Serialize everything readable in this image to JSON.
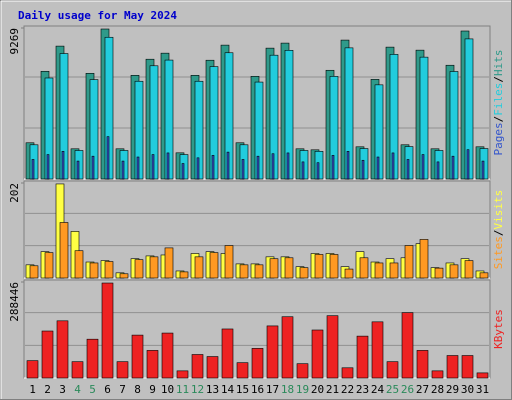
{
  "title": "Daily usage for May 2024",
  "legend_separator": "/",
  "chart_data": [
    {
      "type": "bar",
      "ylim": [
        0,
        9269
      ],
      "yticks": [
        9269
      ],
      "series": [
        {
          "name": "Hits",
          "color": "#2f9a8a",
          "values": [
            2224,
            6612,
            8157,
            1854,
            6488,
            9207,
            1854,
            6365,
            7353,
            7724,
            1607,
            6365,
            7291,
            8218,
            2224,
            6303,
            8033,
            8342,
            1854,
            1792,
            6674,
            8527,
            1977,
            6117,
            8095,
            2101,
            7909,
            1854,
            6983,
            9084,
            1977
          ]
        },
        {
          "name": "Files",
          "color": "#22ccdd",
          "values": [
            2100,
            6200,
            7700,
            1750,
            6100,
            8700,
            1750,
            6000,
            6950,
            7300,
            1500,
            6000,
            6900,
            7750,
            2100,
            5950,
            7600,
            7900,
            1750,
            1700,
            6300,
            8050,
            1870,
            5780,
            7650,
            1990,
            7480,
            1750,
            6600,
            8600,
            1870
          ]
        },
        {
          "name": "Pages",
          "color": "#3355cc",
          "values": [
            1200,
            1500,
            1700,
            1100,
            1400,
            2600,
            1100,
            1350,
            1500,
            1600,
            950,
            1300,
            1450,
            1650,
            1200,
            1400,
            1550,
            1600,
            1050,
            1000,
            1450,
            1700,
            1150,
            1350,
            1600,
            1200,
            1500,
            1050,
            1400,
            1800,
            1100
          ]
        }
      ]
    },
    {
      "type": "bar",
      "ylim": [
        0,
        202
      ],
      "yticks": [
        202
      ],
      "series": [
        {
          "name": "Visits",
          "color": "#ffff44",
          "values": [
            28,
            56,
            200,
            99,
            34,
            37,
            11,
            41,
            47,
            49,
            15,
            52,
            56,
            52,
            30,
            30,
            45,
            45,
            24,
            52,
            52,
            24,
            56,
            34,
            41,
            43,
            73,
            22,
            32,
            41,
            15
          ]
        },
        {
          "name": "Sites",
          "color": "#ff9922",
          "values": [
            26,
            54,
            118,
            58,
            32,
            35,
            9,
            39,
            45,
            64,
            13,
            45,
            54,
            69,
            28,
            28,
            41,
            43,
            22,
            50,
            50,
            19,
            43,
            32,
            32,
            69,
            82,
            21,
            28,
            37,
            11
          ]
        }
      ]
    },
    {
      "type": "bar",
      "ylim": [
        0,
        288446
      ],
      "yticks": [
        288446
      ],
      "categories": [
        "1",
        "2",
        "3",
        "4",
        "5",
        "6",
        "7",
        "8",
        "9",
        "10",
        "11",
        "12",
        "13",
        "14",
        "15",
        "16",
        "17",
        "18",
        "19",
        "20",
        "21",
        "22",
        "23",
        "24",
        "25",
        "26",
        "27",
        "28",
        "29",
        "30",
        "31"
      ],
      "series": [
        {
          "name": "KBytes",
          "color": "#ee2222",
          "values": [
            52166,
            141156,
            171841,
            49097,
            116606,
            285378,
            49097,
            128880,
            82851,
            135017,
            21480,
            70577,
            64441,
            147293,
            46029,
            88988,
            156499,
            184116,
            42960,
            144224,
            187185,
            30686,
            125813,
            168775,
            49097,
            196390,
            82851,
            21480,
            67509,
            67509,
            15343
          ]
        }
      ]
    }
  ]
}
